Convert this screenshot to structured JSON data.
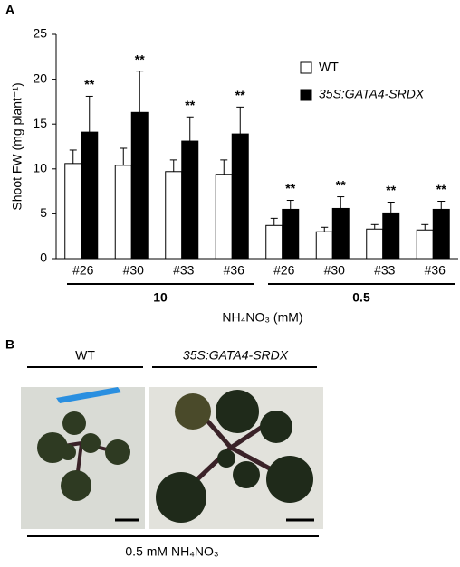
{
  "panel_labels": [
    "A",
    "B"
  ],
  "chart_data": {
    "type": "bar",
    "y_label": "Shoot FW (mg plant⁻¹)",
    "x_label": "NH₄NO₃ (mM)",
    "groups": [
      {
        "label": "10",
        "categories": [
          "#26",
          "#30",
          "#33",
          "#36"
        ]
      },
      {
        "label": "0.5",
        "categories": [
          "#26",
          "#30",
          "#33",
          "#36"
        ]
      }
    ],
    "series": [
      {
        "name": "WT",
        "color": "#ffffff",
        "edge_color": "#000000",
        "values": [
          10.6,
          10.4,
          9.7,
          9.4,
          3.7,
          3.0,
          3.3,
          3.2
        ],
        "errors": [
          1.5,
          1.9,
          1.3,
          1.6,
          0.8,
          0.5,
          0.5,
          0.6
        ]
      },
      {
        "name": "35S:GATA4-SRDX",
        "color": "#000000",
        "edge_color": "#000000",
        "values": [
          14.1,
          16.3,
          13.1,
          13.9,
          5.5,
          5.6,
          5.1,
          5.5
        ],
        "errors": [
          4.0,
          4.6,
          2.7,
          3.0,
          1.0,
          1.3,
          1.2,
          0.9
        ],
        "annotations": [
          "**",
          "**",
          "**",
          "**",
          "**",
          "**",
          "**",
          "**"
        ]
      }
    ],
    "ylim": [
      0,
      25
    ],
    "yticks": [
      0,
      5,
      10,
      15,
      20,
      25
    ],
    "grid": false,
    "legend": "upper right"
  },
  "photo_panel": {
    "labels": [
      "WT",
      "35S:GATA4-SRDX"
    ],
    "caption": "0.5 mM NH₄NO₃"
  }
}
